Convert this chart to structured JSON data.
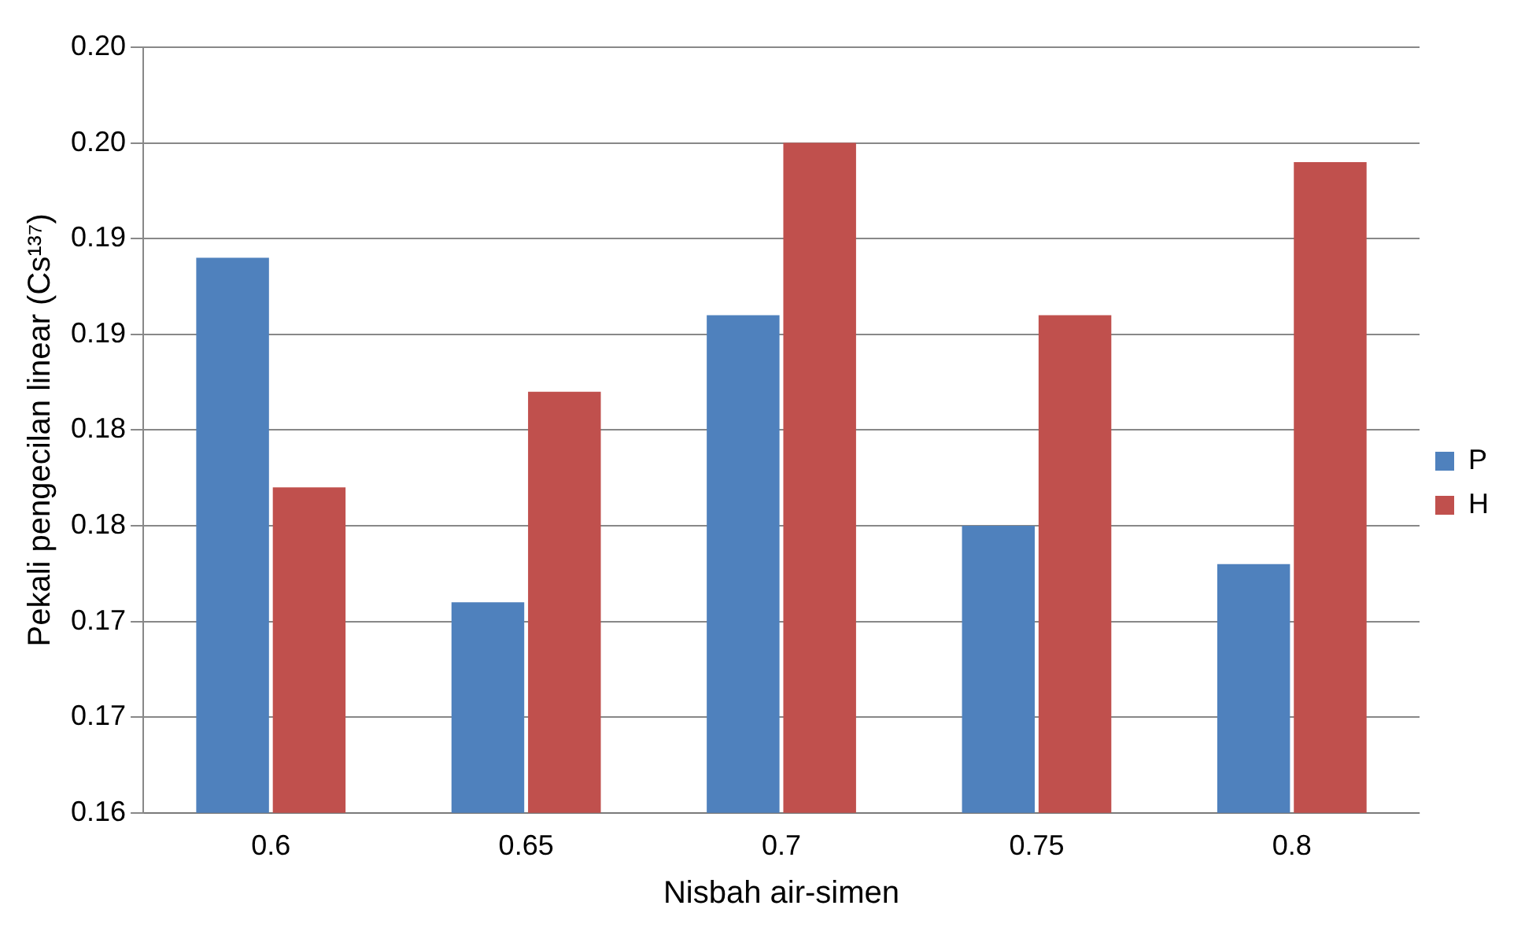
{
  "chart_data": {
    "type": "bar",
    "xlabel": "Nisbah air-simen",
    "ylabel": "Pekali pengecilan linear (Cs¹³⁷)",
    "categories": [
      "0.6",
      "0.65",
      "0.7",
      "0.75",
      "0.8"
    ],
    "series": [
      {
        "name": "P",
        "color": "#4f81bd",
        "values": [
          0.189,
          0.171,
          0.186,
          0.175,
          0.173
        ]
      },
      {
        "name": "H",
        "color": "#c0504d",
        "values": [
          0.177,
          0.182,
          0.195,
          0.186,
          0.194
        ]
      }
    ],
    "ylim": [
      0.16,
      0.2
    ],
    "yticks": [
      {
        "value": 0.16,
        "label": "0.16"
      },
      {
        "value": 0.165,
        "label": "0.17"
      },
      {
        "value": 0.17,
        "label": "0.17"
      },
      {
        "value": 0.175,
        "label": "0.18"
      },
      {
        "value": 0.18,
        "label": "0.18"
      },
      {
        "value": 0.185,
        "label": "0.19"
      },
      {
        "value": 0.19,
        "label": "0.19"
      },
      {
        "value": 0.195,
        "label": "0.20"
      },
      {
        "value": 0.2,
        "label": "0.20"
      }
    ],
    "grid": "y",
    "legend": "right"
  }
}
